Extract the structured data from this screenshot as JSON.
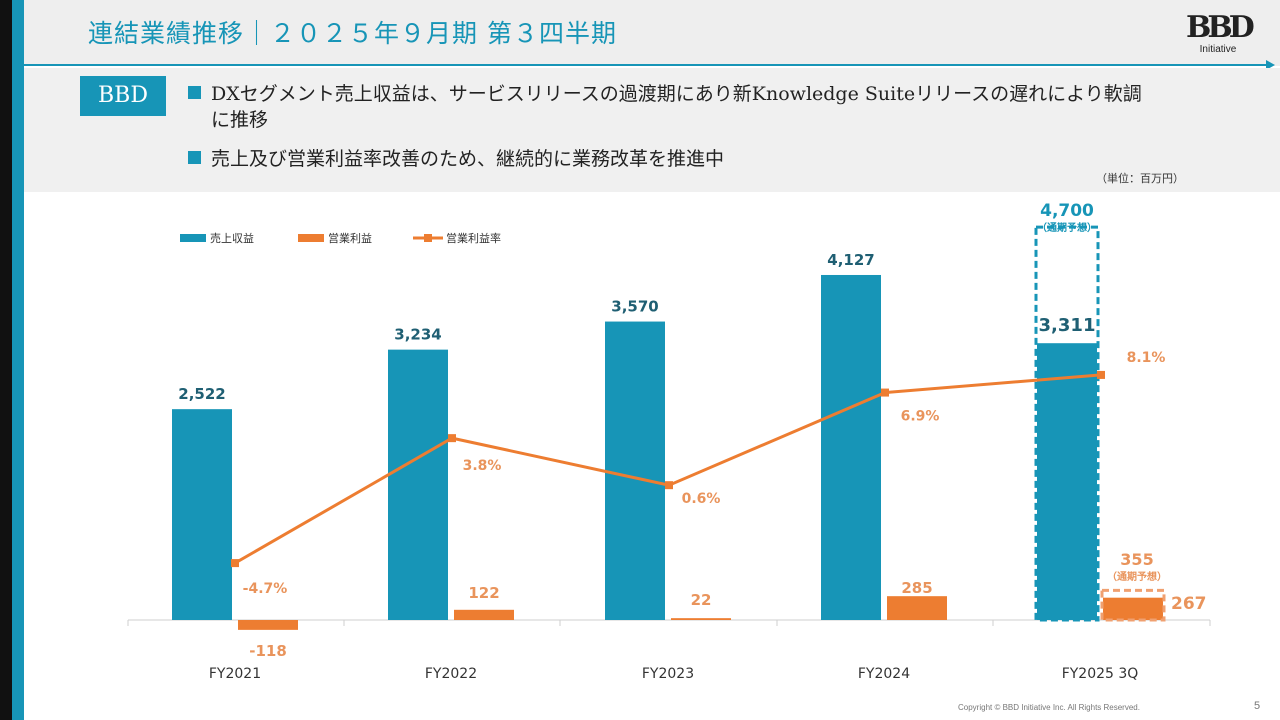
{
  "header": {
    "title": "連結業績推移｜２０２５年９月期 第３四半期",
    "logo_text": "BBD",
    "logo_sub": "Initiative"
  },
  "summary": {
    "badge": "BBD",
    "bullet1_line1": "DXセグメント売上収益は、サービスリリースの過渡期にあり新Knowledge Suiteリリースの遅れにより軟調",
    "bullet1_line2": "に推移",
    "bullet2": "売上及び営業利益率改善のため、継続的に業務改革を推進中"
  },
  "unit_label": "（単位：百万円）",
  "chart_data": {
    "type": "bar",
    "categories": [
      "FY2021",
      "FY2022",
      "FY2023",
      "FY2024",
      "FY2025 3Q"
    ],
    "series": [
      {
        "name": "売上収益",
        "type": "bar",
        "color": "#1795b7",
        "values": [
          2522,
          3234,
          3570,
          4127,
          3311
        ],
        "labels": [
          "2,522",
          "3,234",
          "3,570",
          "4,127",
          "3,311"
        ]
      },
      {
        "name": "営業利益",
        "type": "bar",
        "color": "#ed7d31",
        "values": [
          -118,
          122,
          22,
          285,
          267
        ],
        "labels": [
          "-118",
          "122",
          "22",
          "285",
          "267"
        ]
      },
      {
        "name": "営業利益率",
        "type": "line",
        "color": "#ed7d31",
        "values": [
          -4.7,
          3.8,
          0.6,
          6.9,
          8.1
        ],
        "labels": [
          "-4.7%",
          "3.8%",
          "0.6%",
          "6.9%",
          "8.1%"
        ]
      }
    ],
    "forecast": {
      "revenue": {
        "value": 4700,
        "label": "4,700",
        "note": "（通期予想）"
      },
      "operating_profit": {
        "value": 355,
        "label": "355",
        "note": "（通期予想）"
      }
    },
    "legend_position": "top-left",
    "grid": false
  },
  "footer": {
    "copyright": "Copyright © BBD Initiative Inc. All Rights Reserved.",
    "page": "5"
  }
}
